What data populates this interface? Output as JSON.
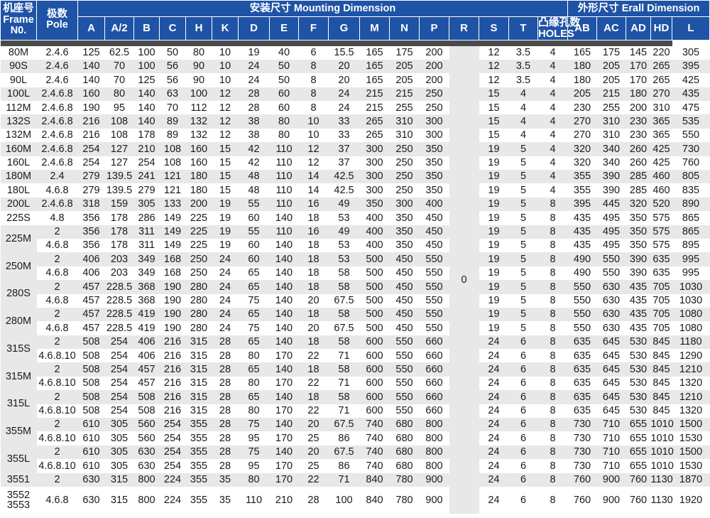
{
  "header": {
    "frame_label_cn": "机座号",
    "frame_label_en": "Frame",
    "frame_label_no": "N0.",
    "pole_label_cn": "极数",
    "pole_label_en": "Pole",
    "mounting_title": "安装尺寸 Mounting Dimension",
    "overall_title": "外形尺寸 Erall Dimension",
    "holes_label_cn": "凸缘孔数",
    "holes_label_en": "HOLES",
    "mounting_columns": [
      "A",
      "A/2",
      "B",
      "C",
      "H",
      "K",
      "D",
      "E",
      "F",
      "G",
      "M",
      "N",
      "P",
      "R",
      "S",
      "T"
    ],
    "overall_columns": [
      "AB",
      "AC",
      "AD",
      "HD",
      "L"
    ]
  },
  "table": {
    "r_value": "0",
    "rows": [
      {
        "frame": "80M",
        "pole": "2.4.6",
        "vals": [
          "125",
          "62.5",
          "100",
          "50",
          "80",
          "10",
          "19",
          "40",
          "6",
          "15.5",
          "165",
          "175",
          "200",
          "12",
          "3.5",
          "4",
          "165",
          "175",
          "145",
          "220",
          "305"
        ]
      },
      {
        "frame": "90S",
        "pole": "2.4.6",
        "vals": [
          "140",
          "70",
          "100",
          "56",
          "90",
          "10",
          "24",
          "50",
          "8",
          "20",
          "165",
          "205",
          "200",
          "12",
          "3.5",
          "4",
          "180",
          "205",
          "170",
          "265",
          "395"
        ]
      },
      {
        "frame": "90L",
        "pole": "2.4.6",
        "vals": [
          "140",
          "70",
          "125",
          "56",
          "90",
          "10",
          "24",
          "50",
          "8",
          "20",
          "165",
          "205",
          "200",
          "12",
          "3.5",
          "4",
          "180",
          "205",
          "170",
          "265",
          "425"
        ]
      },
      {
        "frame": "100L",
        "pole": "2.4.6.8",
        "vals": [
          "160",
          "80",
          "140",
          "63",
          "100",
          "12",
          "28",
          "60",
          "8",
          "24",
          "215",
          "215",
          "250",
          "15",
          "4",
          "4",
          "205",
          "215",
          "180",
          "270",
          "435"
        ]
      },
      {
        "frame": "112M",
        "pole": "2.4.6.8",
        "vals": [
          "190",
          "95",
          "140",
          "70",
          "112",
          "12",
          "28",
          "60",
          "8",
          "24",
          "215",
          "255",
          "250",
          "15",
          "4",
          "4",
          "230",
          "255",
          "200",
          "310",
          "475"
        ]
      },
      {
        "frame": "132S",
        "pole": "2.4.6.8",
        "vals": [
          "216",
          "108",
          "140",
          "89",
          "132",
          "12",
          "38",
          "80",
          "10",
          "33",
          "265",
          "310",
          "300",
          "15",
          "4",
          "4",
          "270",
          "310",
          "230",
          "365",
          "535"
        ]
      },
      {
        "frame": "132M",
        "pole": "2.4.6.8",
        "vals": [
          "216",
          "108",
          "178",
          "89",
          "132",
          "12",
          "38",
          "80",
          "10",
          "33",
          "265",
          "310",
          "300",
          "15",
          "4",
          "4",
          "270",
          "310",
          "230",
          "365",
          "550"
        ]
      },
      {
        "frame": "160M",
        "pole": "2.4.6.8",
        "vals": [
          "254",
          "127",
          "210",
          "108",
          "160",
          "15",
          "42",
          "110",
          "12",
          "37",
          "300",
          "250",
          "350",
          "19",
          "5",
          "4",
          "320",
          "340",
          "260",
          "425",
          "730"
        ]
      },
      {
        "frame": "160L",
        "pole": "2.4.6.8",
        "vals": [
          "254",
          "127",
          "254",
          "108",
          "160",
          "15",
          "42",
          "110",
          "12",
          "37",
          "300",
          "250",
          "350",
          "19",
          "5",
          "4",
          "320",
          "340",
          "260",
          "425",
          "760"
        ]
      },
      {
        "frame": "180M",
        "pole": "2.4",
        "vals": [
          "279",
          "139.5",
          "241",
          "121",
          "180",
          "15",
          "48",
          "110",
          "14",
          "42.5",
          "300",
          "250",
          "350",
          "19",
          "5",
          "4",
          "355",
          "390",
          "285",
          "460",
          "805"
        ]
      },
      {
        "frame": "180L",
        "pole": "4.6.8",
        "vals": [
          "279",
          "139.5",
          "279",
          "121",
          "180",
          "15",
          "48",
          "110",
          "14",
          "42.5",
          "300",
          "250",
          "350",
          "19",
          "5",
          "4",
          "355",
          "390",
          "285",
          "460",
          "835"
        ]
      },
      {
        "frame": "200L",
        "pole": "2.4.6.8",
        "vals": [
          "318",
          "159",
          "305",
          "133",
          "200",
          "19",
          "55",
          "110",
          "16",
          "49",
          "350",
          "300",
          "400",
          "19",
          "5",
          "8",
          "395",
          "445",
          "320",
          "520",
          "890"
        ]
      },
      {
        "frame": "225S",
        "pole": "4.8",
        "vals": [
          "356",
          "178",
          "286",
          "149",
          "225",
          "19",
          "60",
          "140",
          "18",
          "53",
          "400",
          "350",
          "450",
          "19",
          "5",
          "8",
          "435",
          "495",
          "350",
          "575",
          "865"
        ]
      },
      {
        "frame": "225M",
        "pole": "2",
        "vals": [
          "356",
          "178",
          "311",
          "149",
          "225",
          "19",
          "55",
          "110",
          "16",
          "49",
          "400",
          "350",
          "450",
          "19",
          "5",
          "8",
          "435",
          "495",
          "350",
          "575",
          "865"
        ]
      },
      {
        "frame": "",
        "pole": "4.6.8",
        "vals": [
          "356",
          "178",
          "311",
          "149",
          "225",
          "19",
          "60",
          "140",
          "18",
          "53",
          "400",
          "350",
          "450",
          "19",
          "5",
          "8",
          "435",
          "495",
          "350",
          "575",
          "895"
        ]
      },
      {
        "frame": "250M",
        "pole": "2",
        "vals": [
          "406",
          "203",
          "349",
          "168",
          "250",
          "24",
          "60",
          "140",
          "18",
          "53",
          "500",
          "450",
          "550",
          "19",
          "5",
          "8",
          "490",
          "550",
          "390",
          "635",
          "995"
        ]
      },
      {
        "frame": "",
        "pole": "4.6.8",
        "vals": [
          "406",
          "203",
          "349",
          "168",
          "250",
          "24",
          "65",
          "140",
          "18",
          "58",
          "500",
          "450",
          "550",
          "19",
          "5",
          "8",
          "490",
          "550",
          "390",
          "635",
          "995"
        ]
      },
      {
        "frame": "280S",
        "pole": "2",
        "vals": [
          "457",
          "228.5",
          "368",
          "190",
          "280",
          "24",
          "65",
          "140",
          "18",
          "58",
          "500",
          "450",
          "550",
          "19",
          "5",
          "8",
          "550",
          "630",
          "435",
          "705",
          "1030"
        ]
      },
      {
        "frame": "",
        "pole": "4.6.8",
        "vals": [
          "457",
          "228.5",
          "368",
          "190",
          "280",
          "24",
          "75",
          "140",
          "20",
          "67.5",
          "500",
          "450",
          "550",
          "19",
          "5",
          "8",
          "550",
          "630",
          "435",
          "705",
          "1030"
        ]
      },
      {
        "frame": "280M",
        "pole": "2",
        "vals": [
          "457",
          "228.5",
          "419",
          "190",
          "280",
          "24",
          "65",
          "140",
          "18",
          "58",
          "500",
          "450",
          "550",
          "19",
          "5",
          "8",
          "550",
          "630",
          "435",
          "705",
          "1080"
        ]
      },
      {
        "frame": "",
        "pole": "4.6.8",
        "vals": [
          "457",
          "228.5",
          "419",
          "190",
          "280",
          "24",
          "75",
          "140",
          "20",
          "67.5",
          "500",
          "450",
          "550",
          "19",
          "5",
          "8",
          "550",
          "630",
          "435",
          "705",
          "1080"
        ]
      },
      {
        "frame": "315S",
        "pole": "2",
        "vals": [
          "508",
          "254",
          "406",
          "216",
          "315",
          "28",
          "65",
          "140",
          "18",
          "58",
          "600",
          "550",
          "660",
          "24",
          "6",
          "8",
          "635",
          "645",
          "530",
          "845",
          "1180"
        ]
      },
      {
        "frame": "",
        "pole": "4.6.8.10",
        "vals": [
          "508",
          "254",
          "406",
          "216",
          "315",
          "28",
          "80",
          "170",
          "22",
          "71",
          "600",
          "550",
          "660",
          "24",
          "6",
          "8",
          "635",
          "645",
          "530",
          "845",
          "1290"
        ]
      },
      {
        "frame": "315M",
        "pole": "2",
        "vals": [
          "508",
          "254",
          "457",
          "216",
          "315",
          "28",
          "65",
          "140",
          "18",
          "58",
          "600",
          "550",
          "660",
          "24",
          "6",
          "8",
          "635",
          "645",
          "530",
          "845",
          "1210"
        ]
      },
      {
        "frame": "",
        "pole": "4.6.8.10",
        "vals": [
          "508",
          "254",
          "457",
          "216",
          "315",
          "28",
          "80",
          "170",
          "22",
          "71",
          "600",
          "550",
          "660",
          "24",
          "6",
          "8",
          "635",
          "645",
          "530",
          "845",
          "1320"
        ]
      },
      {
        "frame": "315L",
        "pole": "2",
        "vals": [
          "508",
          "254",
          "508",
          "216",
          "315",
          "28",
          "65",
          "140",
          "18",
          "58",
          "600",
          "550",
          "660",
          "24",
          "6",
          "8",
          "635",
          "645",
          "530",
          "845",
          "1210"
        ]
      },
      {
        "frame": "",
        "pole": "4.6.8.10",
        "vals": [
          "508",
          "254",
          "508",
          "216",
          "315",
          "28",
          "80",
          "170",
          "22",
          "71",
          "600",
          "550",
          "660",
          "24",
          "6",
          "8",
          "635",
          "645",
          "530",
          "845",
          "1320"
        ]
      },
      {
        "frame": "355M",
        "pole": "2",
        "vals": [
          "610",
          "305",
          "560",
          "254",
          "355",
          "28",
          "75",
          "140",
          "20",
          "67.5",
          "740",
          "680",
          "800",
          "24",
          "6",
          "8",
          "730",
          "710",
          "655",
          "1010",
          "1500"
        ]
      },
      {
        "frame": "",
        "pole": "4.6.8.10",
        "vals": [
          "610",
          "305",
          "560",
          "254",
          "355",
          "28",
          "95",
          "170",
          "25",
          "86",
          "740",
          "680",
          "800",
          "24",
          "6",
          "8",
          "730",
          "710",
          "655",
          "1010",
          "1530"
        ]
      },
      {
        "frame": "355L",
        "pole": "2",
        "vals": [
          "610",
          "305",
          "630",
          "254",
          "355",
          "28",
          "75",
          "140",
          "20",
          "67.5",
          "740",
          "680",
          "800",
          "24",
          "6",
          "8",
          "730",
          "710",
          "655",
          "1010",
          "1500"
        ]
      },
      {
        "frame": "",
        "pole": "4.6.8.10",
        "vals": [
          "610",
          "305",
          "630",
          "254",
          "355",
          "28",
          "95",
          "170",
          "25",
          "86",
          "740",
          "680",
          "800",
          "24",
          "6",
          "8",
          "730",
          "710",
          "655",
          "1010",
          "1530"
        ]
      },
      {
        "frame": "3551",
        "pole": "2",
        "vals": [
          "630",
          "315",
          "800",
          "224",
          "355",
          "35",
          "80",
          "170",
          "22",
          "71",
          "840",
          "780",
          "900",
          "24",
          "6",
          "8",
          "760",
          "900",
          "760",
          "1130",
          "1870"
        ]
      },
      {
        "frame": "3552\n3553",
        "pole": "4.6.8",
        "vals": [
          "630",
          "315",
          "800",
          "224",
          "355",
          "35",
          "110",
          "210",
          "28",
          "100",
          "840",
          "780",
          "900",
          "24",
          "6",
          "8",
          "760",
          "900",
          "760",
          "1130",
          "1920"
        ]
      }
    ]
  }
}
